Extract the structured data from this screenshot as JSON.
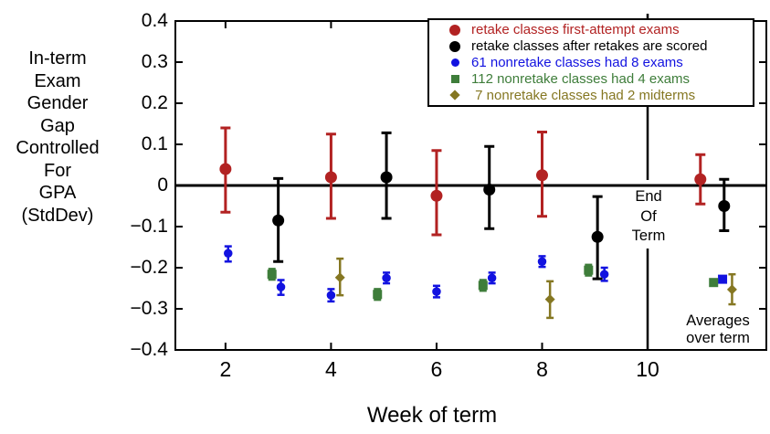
{
  "chart_data": {
    "type": "scatter",
    "title": "",
    "xlabel": "Week of term",
    "ylabel": "In-term Exam Gender Gap Controlled For GPA (StdDev)",
    "ylabel_lines": [
      "In-term",
      "Exam",
      "Gender",
      "Gap",
      "Controlled",
      "For",
      "GPA",
      "(StdDev)"
    ],
    "x_range": [
      1.05,
      12.25
    ],
    "y_range": [
      -0.4,
      0.4
    ],
    "x_ticks": [
      2,
      4,
      6,
      8,
      10
    ],
    "x_tick_labels": [
      "2",
      "4",
      "6",
      "8",
      "10"
    ],
    "y_ticks": [
      0.4,
      0.3,
      0.2,
      0.1,
      0,
      -0.1,
      -0.2,
      -0.3,
      -0.4
    ],
    "y_tick_labels": [
      "0.4",
      "0.3",
      "0.2",
      "0.1",
      "0",
      "−0.1",
      "−0.2",
      "−0.3",
      "−0.4"
    ],
    "grid": false,
    "zero_line_y": 0,
    "end_of_term_line_x": 10,
    "legend_position": "top-right",
    "annotations": {
      "end_of_term_lines": [
        "End",
        "Of",
        "Term"
      ],
      "averages_lines": [
        "Averages",
        "over term"
      ]
    },
    "series": [
      {
        "name": "retake classes first-attempt exams",
        "color": "#b22222",
        "marker": "circle",
        "marker_size": 13,
        "points": [
          {
            "x": 2.0,
            "y": 0.04,
            "lo": -0.065,
            "hi": 0.14
          },
          {
            "x": 4.0,
            "y": 0.02,
            "lo": -0.08,
            "hi": 0.125
          },
          {
            "x": 6.0,
            "y": -0.025,
            "lo": -0.12,
            "hi": 0.085
          },
          {
            "x": 8.0,
            "y": 0.025,
            "lo": -0.075,
            "hi": 0.13
          },
          {
            "x": 11.0,
            "y": 0.015,
            "lo": -0.045,
            "hi": 0.075
          }
        ]
      },
      {
        "name": "retake classes after retakes are scored",
        "color": "#000000",
        "marker": "circle",
        "marker_size": 13,
        "points": [
          {
            "x": 3.0,
            "y": -0.085,
            "lo": -0.185,
            "hi": 0.017
          },
          {
            "x": 5.05,
            "y": 0.02,
            "lo": -0.08,
            "hi": 0.128
          },
          {
            "x": 7.0,
            "y": -0.01,
            "lo": -0.105,
            "hi": 0.095
          },
          {
            "x": 9.05,
            "y": -0.125,
            "lo": -0.227,
            "hi": -0.027
          },
          {
            "x": 11.45,
            "y": -0.05,
            "lo": -0.11,
            "hi": 0.015
          }
        ]
      },
      {
        "name": "61 nonretake classes had 8 exams",
        "color": "#1212e0",
        "marker": "circle",
        "marker_size": 9.5,
        "points": [
          {
            "x": 2.05,
            "y": -0.165,
            "lo": -0.185,
            "hi": -0.148
          },
          {
            "x": 3.05,
            "y": -0.247,
            "lo": -0.266,
            "hi": -0.23
          },
          {
            "x": 4.0,
            "y": -0.267,
            "lo": -0.282,
            "hi": -0.252
          },
          {
            "x": 5.05,
            "y": -0.225,
            "lo": -0.238,
            "hi": -0.212
          },
          {
            "x": 6.0,
            "y": -0.258,
            "lo": -0.272,
            "hi": -0.244
          },
          {
            "x": 7.05,
            "y": -0.225,
            "lo": -0.238,
            "hi": -0.212
          },
          {
            "x": 8.0,
            "y": -0.185,
            "lo": -0.198,
            "hi": -0.172
          },
          {
            "x": 9.18,
            "y": -0.216,
            "lo": -0.232,
            "hi": -0.2
          },
          {
            "x": 11.42,
            "y": -0.228,
            "marker": "square",
            "size": 10
          }
        ]
      },
      {
        "name": "112 nonretake classes had 4 exams",
        "color": "#3e7d3a",
        "marker": "square",
        "marker_size": 10,
        "points": [
          {
            "x": 2.88,
            "y": -0.216,
            "lo": -0.229,
            "hi": -0.203
          },
          {
            "x": 4.88,
            "y": -0.265,
            "lo": -0.278,
            "hi": -0.252
          },
          {
            "x": 6.88,
            "y": -0.243,
            "lo": -0.256,
            "hi": -0.23
          },
          {
            "x": 8.88,
            "y": -0.206,
            "lo": -0.219,
            "hi": -0.193
          },
          {
            "x": 11.25,
            "y": -0.236
          }
        ]
      },
      {
        "name": " 7 nonretake classes had 2 midterms",
        "color": "#857722",
        "marker": "diamond",
        "marker_size": 11,
        "points": [
          {
            "x": 4.17,
            "y": -0.224,
            "lo": -0.267,
            "hi": -0.178
          },
          {
            "x": 8.15,
            "y": -0.277,
            "lo": -0.322,
            "hi": -0.233
          },
          {
            "x": 11.6,
            "y": -0.253,
            "lo": -0.289,
            "hi": -0.216
          }
        ]
      }
    ]
  }
}
